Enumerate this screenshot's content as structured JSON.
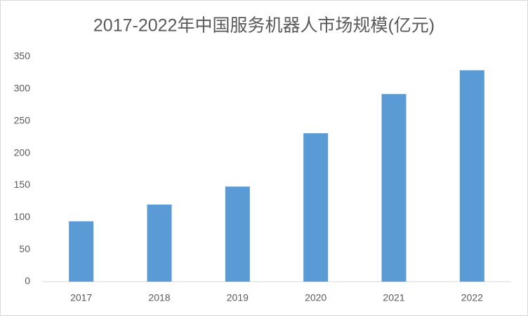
{
  "chart_data": {
    "type": "bar",
    "title": "2017-2022年中国服务机器人市场规模(亿元)",
    "categories": [
      "2017",
      "2018",
      "2019",
      "2020",
      "2021",
      "2022"
    ],
    "values": [
      94,
      120,
      148,
      231,
      292,
      329
    ],
    "color": "#5b9bd5",
    "ylim": [
      0,
      350
    ],
    "yticks": [
      0,
      50,
      100,
      150,
      200,
      250,
      300,
      350
    ],
    "grid": false
  }
}
